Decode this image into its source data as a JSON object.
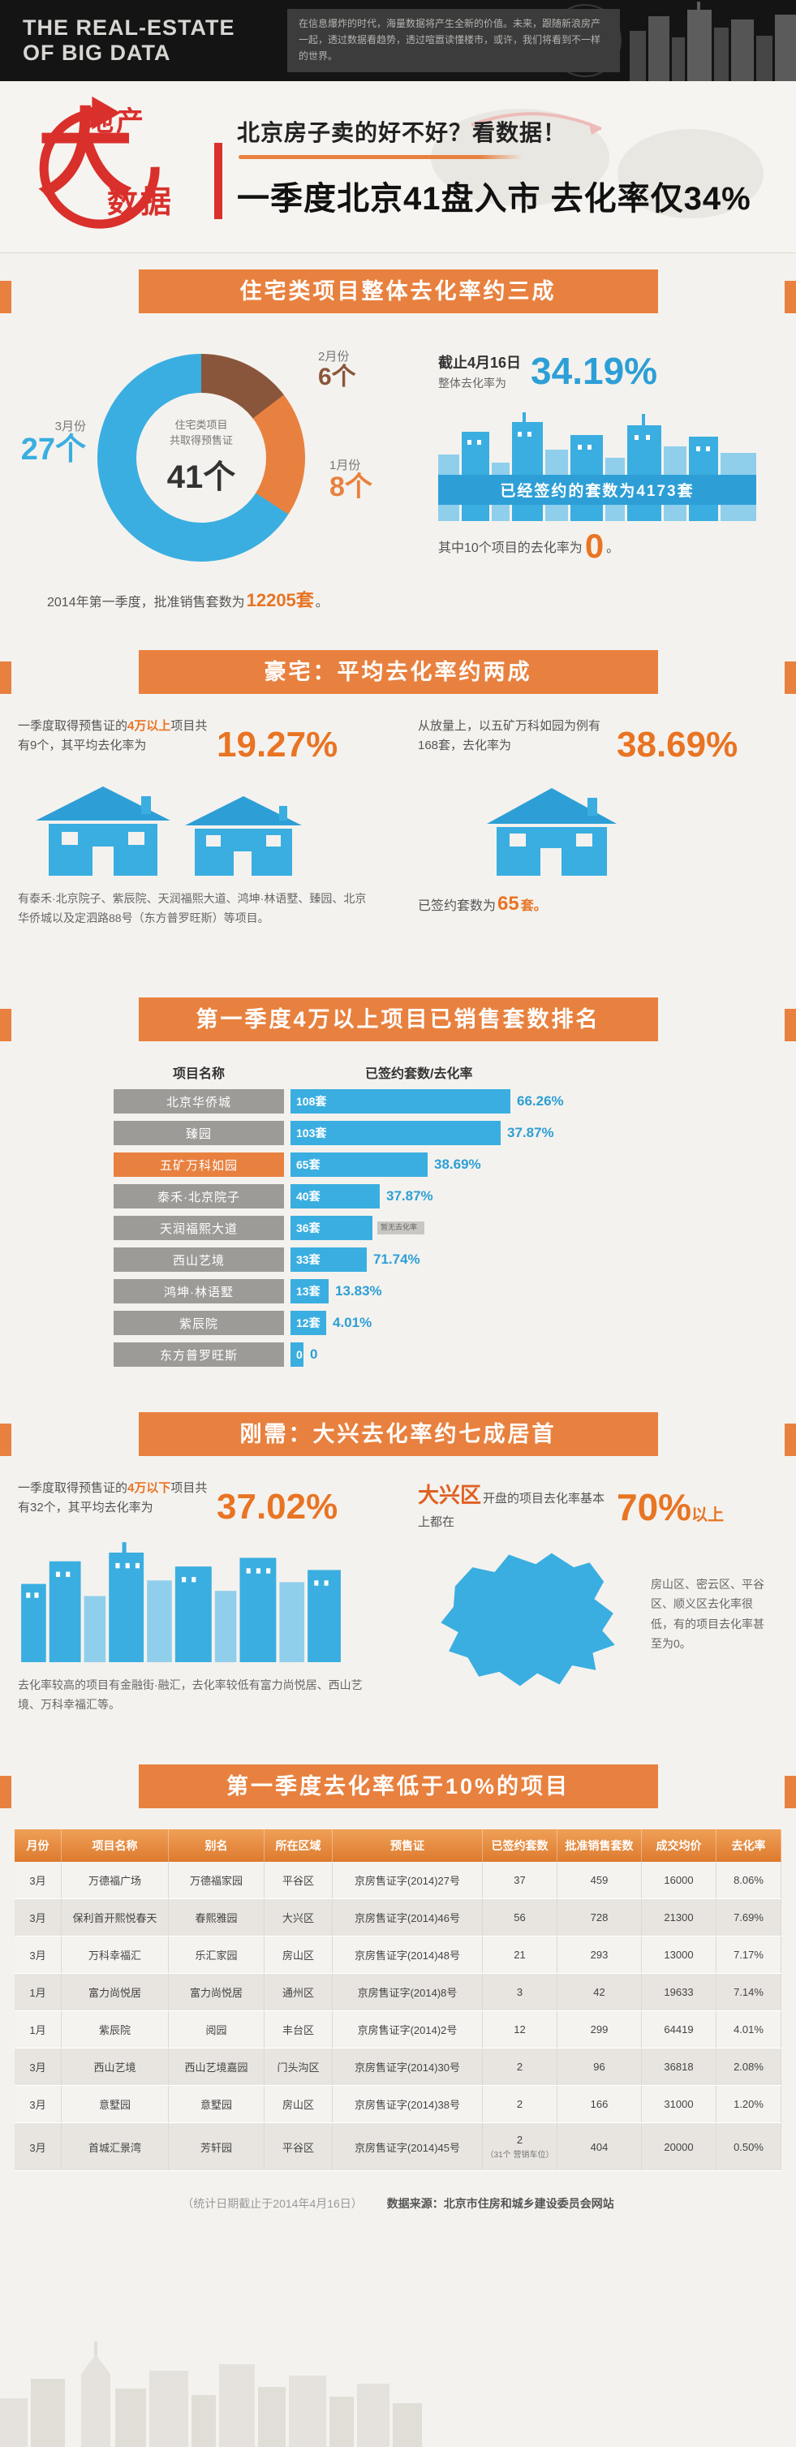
{
  "masthead": {
    "brand": "THE  REAL-ESTATE  OF  BIG  DATA",
    "tagline": "在信息爆炸的时代，海量数据将产生全新的价值。未来，跟随新浪房产一起，透过数据看趋势，透过喧嚣读懂楼市，或许，我们将看到不一样的世界。"
  },
  "header": {
    "logo_top": "地产",
    "logo_big": "大",
    "logo_bottom": "数据",
    "subtitle": "北京房子卖的好不好？看数据！",
    "title": "一季度北京41盘入市 去化率仅34%"
  },
  "s1": {
    "banner": "住宅类项目整体去化率约三成",
    "donut_center": {
      "line1": "住宅类项目",
      "line2": "共取得预售证",
      "value": "41个"
    },
    "slices": [
      {
        "label": "2月份",
        "value": "6个",
        "count": 6,
        "color": "#8A563B"
      },
      {
        "label": "1月份",
        "value": "8个",
        "count": 8,
        "color": "#E8813F"
      },
      {
        "label": "3月份",
        "value": "27个",
        "count": 27,
        "color": "#3AAEE0"
      }
    ],
    "caption_prefix": "2014年第一季度，批准销售套数为",
    "caption_value": "12205套",
    "caption_suffix": "。",
    "asof_line1": "截止4月16日",
    "asof_line2": "整体去化率为",
    "overall_rate": "34.19%",
    "signed_band": "已经签约的套数为4173套",
    "zero_prefix": "其中10个项目的去化率为",
    "zero_value": "0",
    "zero_suffix": "。"
  },
  "s2": {
    "banner": "豪宅：平均去化率约两成",
    "left_text_1": "一季度取得预售证的",
    "left_text_hl": "4万以上",
    "left_text_2": "项目共有9个，其平均去化率为",
    "left_rate": "19.27%",
    "left_caption": "有泰禾·北京院子、紫辰院、天润福熙大道、鸿坤·林语墅、臻园、北京华侨城以及定泗路88号（东方普罗旺斯）等项目。",
    "right_text": "从放量上，以五矿万科如园为例有168套，去化率为",
    "right_rate": "38.69%",
    "signed_prefix": "已签约套数为",
    "signed_value": "65",
    "signed_suffix": "套。"
  },
  "s3": {
    "banner": "第一季度4万以上项目已销售套数排名",
    "col1": "项目名称",
    "col2": "已签约套数/去化率",
    "rows": [
      {
        "name": "北京华侨城",
        "count": 108,
        "count_label": "108套",
        "rate": "66.26%"
      },
      {
        "name": "臻园",
        "count": 103,
        "count_label": "103套",
        "rate": "37.87%"
      },
      {
        "name": "五矿万科如园",
        "count": 65,
        "count_label": "65套",
        "rate": "38.69%",
        "highlight": true
      },
      {
        "name": "泰禾·北京院子",
        "count": 40,
        "count_label": "40套",
        "rate": "37.87%"
      },
      {
        "name": "天润福熙大道",
        "count": 36,
        "count_label": "36套",
        "rate": "",
        "note": "暂无去化率"
      },
      {
        "name": "西山艺境",
        "count": 33,
        "count_label": "33套",
        "rate": "71.74%"
      },
      {
        "name": "鸿坤·林语墅",
        "count": 13,
        "count_label": "13套",
        "rate": "13.83%"
      },
      {
        "name": "紫辰院",
        "count": 12,
        "count_label": "12套",
        "rate": "4.01%"
      },
      {
        "name": "东方普罗旺斯",
        "count": 0,
        "count_label": "0",
        "rate": "0"
      }
    ]
  },
  "s4": {
    "banner": "刚需：大兴去化率约七成居首",
    "left_text_1": "一季度取得预售证的",
    "left_text_hl": "4万以下",
    "left_text_2": "项目共有32个，其平均去化率为",
    "left_rate": "37.02%",
    "left_caption": "去化率较高的项目有金融街·融汇，去化率较低有富力尚悦居、西山艺境、万科幸福汇等。",
    "right_hl": "大兴区",
    "right_text": "开盘的项目去化率基本上都在",
    "right_rate": "70%",
    "right_rate_suffix": "以上",
    "right_caption": "房山区、密云区、平谷区、顺义区去化率很低，有的项目去化率甚至为0。"
  },
  "s5": {
    "banner": "第一季度去化率低于10%的项目",
    "columns": [
      "月份",
      "项目名称",
      "别名",
      "所在区域",
      "预售证",
      "已签约套数",
      "批准销售套数",
      "成交均价",
      "去化率"
    ],
    "rows": [
      {
        "month": "3月",
        "name": "万德福广场",
        "alias": "万德福家园",
        "district": "平谷区",
        "permit": "京房售证字(2014)27号",
        "signed": "37",
        "approved": "459",
        "price": "16000",
        "rate": "8.06%"
      },
      {
        "month": "3月",
        "name": "保利首开熙悦春天",
        "alias": "春熙雅园",
        "district": "大兴区",
        "permit": "京房售证字(2014)46号",
        "signed": "56",
        "approved": "728",
        "price": "21300",
        "rate": "7.69%"
      },
      {
        "month": "3月",
        "name": "万科幸福汇",
        "alias": "乐汇家园",
        "district": "房山区",
        "permit": "京房售证字(2014)48号",
        "signed": "21",
        "approved": "293",
        "price": "13000",
        "rate": "7.17%"
      },
      {
        "month": "1月",
        "name": "富力尚悦居",
        "alias": "富力尚悦居",
        "district": "通州区",
        "permit": "京房售证字(2014)8号",
        "signed": "3",
        "approved": "42",
        "price": "19633",
        "rate": "7.14%"
      },
      {
        "month": "1月",
        "name": "紫辰院",
        "alias": "阅园",
        "district": "丰台区",
        "permit": "京房售证字(2014)2号",
        "signed": "12",
        "approved": "299",
        "price": "64419",
        "rate": "4.01%"
      },
      {
        "month": "3月",
        "name": "西山艺境",
        "alias": "西山艺境嘉园",
        "district": "门头沟区",
        "permit": "京房售证字(2014)30号",
        "signed": "2",
        "approved": "96",
        "price": "36818",
        "rate": "2.08%"
      },
      {
        "month": "3月",
        "name": "意墅园",
        "alias": "意墅园",
        "district": "房山区",
        "permit": "京房售证字(2014)38号",
        "signed": "2",
        "approved": "166",
        "price": "31000",
        "rate": "1.20%"
      },
      {
        "month": "3月",
        "name": "首城汇景湾",
        "alias": "芳轩园",
        "district": "平谷区",
        "permit": "京房售证字(2014)45号",
        "signed": "2",
        "signed_note": "（31个 营销车位）",
        "approved": "404",
        "price": "20000",
        "rate": "0.50%"
      }
    ]
  },
  "footer": {
    "note": "（统计日期截止于2014年4月16日）",
    "source": "数据来源：北京市住房和城乡建设委员会网站"
  },
  "chart_data": [
    {
      "type": "pie",
      "title": "住宅类项目共取得预售证 41个（2014年第一季度，批准销售套数12205套，截止4月16日整体去化率34.19%，已签约4173套，其中10个项目去化率为0）",
      "categories": [
        "3月份",
        "1月份",
        "2月份"
      ],
      "values": [
        27,
        8,
        6
      ],
      "unit": "个"
    },
    {
      "type": "bar",
      "title": "第一季度4万以上项目已销售套数排名",
      "categories": [
        "北京华侨城",
        "臻园",
        "五矿万科如园",
        "泰禾·北京院子",
        "天润福熙大道",
        "西山艺境",
        "鸿坤·林语墅",
        "紫辰院",
        "东方普罗旺斯"
      ],
      "series": [
        {
          "name": "已签约套数",
          "values": [
            108,
            103,
            65,
            40,
            36,
            33,
            13,
            12,
            0
          ]
        },
        {
          "name": "去化率(%)",
          "values": [
            66.26,
            37.87,
            38.69,
            37.87,
            null,
            71.74,
            13.83,
            4.01,
            0
          ]
        }
      ],
      "xlabel": "项目名称",
      "ylabel": "已签约套数/去化率",
      "orientation": "horizontal"
    },
    {
      "type": "table",
      "title": "第一季度去化率低于10%的项目",
      "columns": [
        "月份",
        "项目名称",
        "别名",
        "所在区域",
        "预售证",
        "已签约套数",
        "批准销售套数",
        "成交均价",
        "去化率"
      ],
      "rows": [
        [
          "3月",
          "万德福广场",
          "万德福家园",
          "平谷区",
          "京房售证字(2014)27号",
          "37",
          "459",
          "16000",
          "8.06%"
        ],
        [
          "3月",
          "保利首开熙悦春天",
          "春熙雅园",
          "大兴区",
          "京房售证字(2014)46号",
          "56",
          "728",
          "21300",
          "7.69%"
        ],
        [
          "3月",
          "万科幸福汇",
          "乐汇家园",
          "房山区",
          "京房售证字(2014)48号",
          "21",
          "293",
          "13000",
          "7.17%"
        ],
        [
          "1月",
          "富力尚悦居",
          "富力尚悦居",
          "通州区",
          "京房售证字(2014)8号",
          "3",
          "42",
          "19633",
          "7.14%"
        ],
        [
          "1月",
          "紫辰院",
          "阅园",
          "丰台区",
          "京房售证字(2014)2号",
          "12",
          "299",
          "64419",
          "4.01%"
        ],
        [
          "3月",
          "西山艺境",
          "西山艺境嘉园",
          "门头沟区",
          "京房售证字(2014)30号",
          "2",
          "96",
          "36818",
          "2.08%"
        ],
        [
          "3月",
          "意墅园",
          "意墅园",
          "房山区",
          "京房售证字(2014)38号",
          "2",
          "166",
          "31000",
          "1.20%"
        ],
        [
          "3月",
          "首城汇景湾",
          "芳轩园",
          "平谷区",
          "京房售证字(2014)45号",
          "2（31个 营销车位）",
          "404",
          "20000",
          "0.50%"
        ]
      ]
    }
  ]
}
